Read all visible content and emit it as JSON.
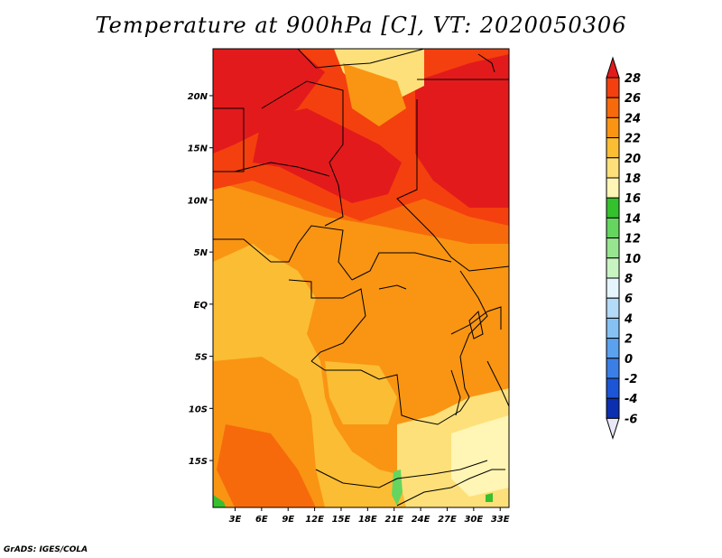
{
  "title": "Temperature at 900hPa [C], VT: 2020050306",
  "credit": "GrADS: IGES/COLA",
  "map": {
    "lat_ticks": [
      "20N",
      "15N",
      "10N",
      "5N",
      "EQ",
      "5S",
      "10S",
      "15S"
    ],
    "lon_ticks": [
      "3E",
      "6E",
      "9E",
      "12E",
      "15E",
      "18E",
      "21E",
      "24E",
      "27E",
      "30E",
      "33E"
    ],
    "lat_values": [
      20,
      15,
      10,
      5,
      0,
      -5,
      -10,
      -15
    ],
    "lon_values": [
      3,
      6,
      9,
      12,
      15,
      18,
      21,
      24,
      27,
      30,
      33
    ],
    "lat_range": [
      -19.5,
      24.5
    ],
    "lon_range": [
      0.5,
      34.0
    ]
  },
  "colorbar": {
    "labels": [
      "28",
      "26",
      "24",
      "22",
      "20",
      "18",
      "16",
      "14",
      "12",
      "10",
      "8",
      "6",
      "4",
      "2",
      "0",
      "-2",
      "-4",
      "-6"
    ],
    "colors": [
      "#e31a1c",
      "#f4400e",
      "#f76a0b",
      "#f99513",
      "#fbbd34",
      "#fde07a",
      "#fff5b4",
      "#35c02e",
      "#65d55f",
      "#98e591",
      "#c8f4c2",
      "#e6f5fd",
      "#b3daf6",
      "#86c1f3",
      "#5aa1ee",
      "#3b7fe6",
      "#1c56d6",
      "#0c2fb0",
      "#051572"
    ]
  },
  "field": {
    "colors": {
      "t28": "#e31a1c",
      "t26": "#f4400e",
      "t24": "#f76a0b",
      "t22": "#f99513",
      "t20": "#fbbd34",
      "t18": "#fde07a",
      "t16": "#fff5b4",
      "t14": "#35c02e",
      "t12": "#65d55f"
    }
  }
}
